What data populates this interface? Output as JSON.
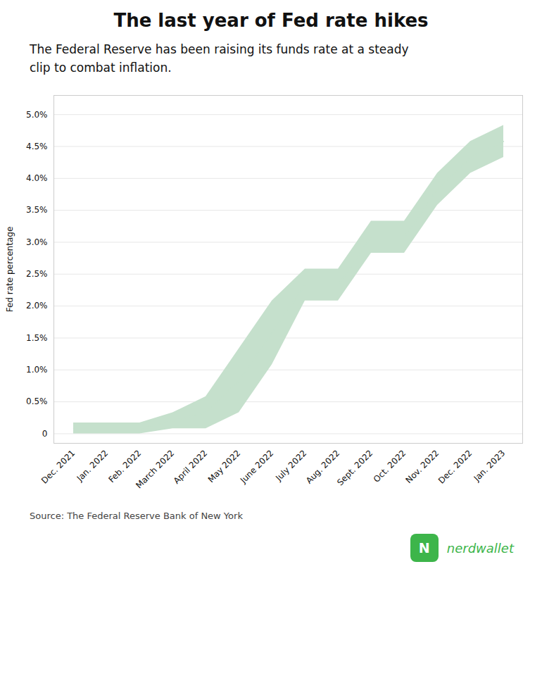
{
  "chart_data": {
    "type": "area",
    "title": "The last year of Fed rate hikes",
    "subtitle": "The Federal Reserve has been raising its funds rate at a steady\nclip to combat inflation.",
    "source": "Source: The Federal Reserve Bank of New York",
    "ylabel": "Fed rate percentage",
    "color": "#c5e0cc",
    "categories": [
      "Dec. 2021",
      "Jan. 2022",
      "Feb. 2022",
      "March 2022",
      "April 2022",
      "May 2022",
      "June 2022",
      "July 2022",
      "Aug. 2022",
      "Sept. 2022",
      "Oct. 2022",
      "Nov. 2022",
      "Dec. 2022",
      "Jan. 2023"
    ],
    "values": [
      0.08,
      0.08,
      0.08,
      0.2,
      0.33,
      0.83,
      1.58,
      2.33,
      2.33,
      3.08,
      3.08,
      3.83,
      4.33,
      4.58
    ],
    "lower": [
      0.0,
      0.0,
      0.0,
      0.08,
      0.08,
      0.33,
      1.08,
      2.08,
      2.08,
      2.83,
      2.83,
      3.58,
      4.08,
      4.33
    ],
    "upper": [
      0.17,
      0.17,
      0.17,
      0.33,
      0.58,
      1.33,
      2.08,
      2.58,
      2.58,
      3.33,
      3.33,
      4.08,
      4.58,
      4.83
    ],
    "ylim": [
      -0.15,
      5.3
    ],
    "yticks": [
      0,
      {
        "value": 0.5,
        "label": "0.5%"
      },
      {
        "value": 1.0,
        "label": "1.0%"
      },
      {
        "value": 1.5,
        "label": "1.5%"
      },
      {
        "value": 2.0,
        "label": "2.0%"
      },
      {
        "value": 2.5,
        "label": "2.5%"
      },
      {
        "value": 3.0,
        "label": "3.0%"
      },
      {
        "value": 3.5,
        "label": "3.5%"
      },
      {
        "value": 4.0,
        "label": "4.0%"
      },
      {
        "value": 4.5,
        "label": "4.5%"
      },
      {
        "value": 5.0,
        "label": "5.0%"
      }
    ],
    "grid": true,
    "annotations": [
      {
        "text": "N",
        "color": "#3db54a"
      },
      {
        "text": "nerdwallet",
        "color": "#3db54a"
      }
    ]
  }
}
